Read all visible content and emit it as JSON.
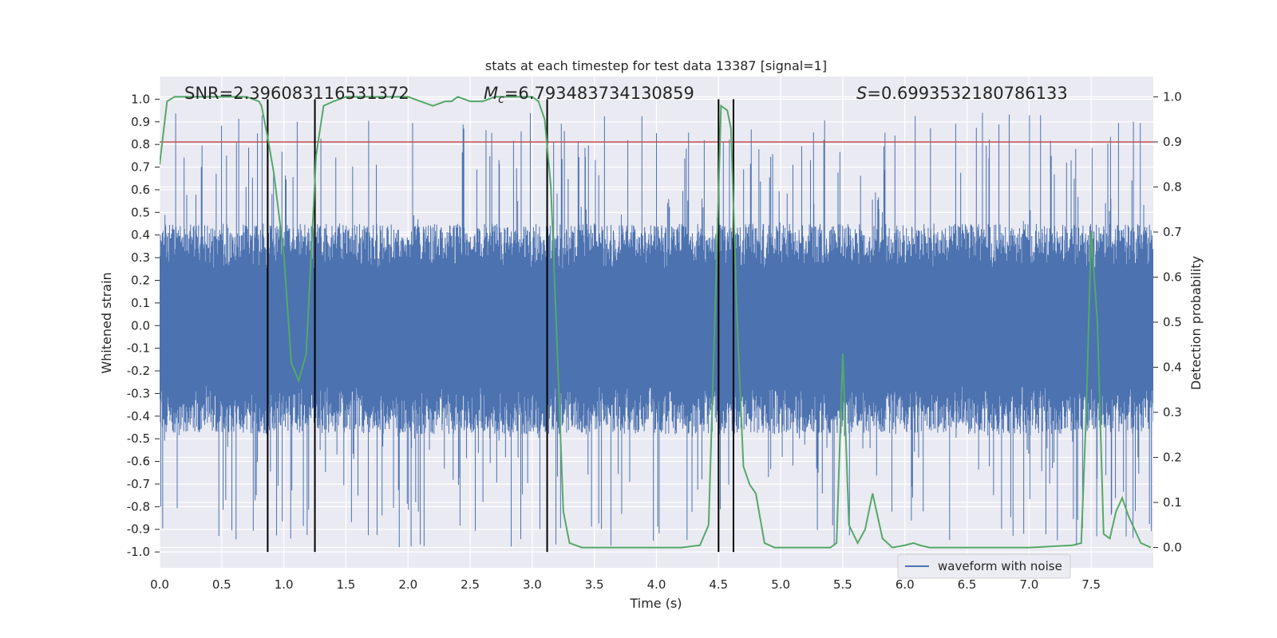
{
  "chart_data": {
    "type": "line",
    "title": "stats at each timestep for test data 13387 [signal=1]",
    "xlabel": "Time (s)",
    "ylabel_left": "Whitened strain",
    "ylabel_right": "Detection probability",
    "xlim": [
      0.0,
      8.0
    ],
    "ylim_left": [
      -1.07,
      1.1
    ],
    "ylim_right": [
      -0.045,
      1.045
    ],
    "x_ticks": [
      0.0,
      0.5,
      1.0,
      1.5,
      2.0,
      2.5,
      3.0,
      3.5,
      4.0,
      4.5,
      5.0,
      5.5,
      6.0,
      6.5,
      7.0,
      7.5
    ],
    "x_tick_labels": [
      "0.0",
      "0.5",
      "1.0",
      "1.5",
      "2.0",
      "2.5",
      "3.0",
      "3.5",
      "4.0",
      "4.5",
      "5.0",
      "5.5",
      "6.0",
      "6.5",
      "7.0",
      "7.5"
    ],
    "y_left_ticks": [
      1.0,
      0.9,
      0.8,
      0.7,
      0.6,
      0.5,
      0.4,
      0.3,
      0.2,
      0.1,
      0.0,
      -0.1,
      -0.2,
      -0.3,
      -0.4,
      -0.5,
      -0.6,
      -0.7,
      -0.8,
      -0.9,
      -1.0
    ],
    "y_left_tick_labels": [
      "1.0",
      "0.9",
      "0.8",
      "0.7",
      "0.6",
      "0.5",
      "0.4",
      "0.3",
      "0.2",
      "0.1",
      "0.0",
      "-0.1",
      "-0.2",
      "-0.3",
      "-0.4",
      "-0.5",
      "-0.6",
      "-0.7",
      "-0.8",
      "-0.9",
      "-1.0"
    ],
    "y_right_ticks": [
      1.0,
      0.9,
      0.8,
      0.7,
      0.6,
      0.5,
      0.4,
      0.3,
      0.2,
      0.1,
      0.0
    ],
    "y_right_tick_labels": [
      "1.0",
      "0.9",
      "0.8",
      "0.7",
      "0.6",
      "0.5",
      "0.4",
      "0.3",
      "0.2",
      "0.1",
      "0.0"
    ],
    "grid": true,
    "legend": {
      "entries": [
        "waveform with noise"
      ],
      "placement": "bottom-right"
    },
    "annotations": {
      "snr": "SNR=2.396083116531372",
      "mc_symbol": "M",
      "mc_subscript": "c",
      "mc_value": "=6.793483734130859",
      "s_symbol": "S",
      "s_value": "=0.6993532180786133"
    },
    "threshold": {
      "axis": "right",
      "value": 0.9,
      "color": "#c44e52"
    },
    "vertical_markers": [
      0.87,
      1.25,
      3.12,
      4.5,
      4.62
    ],
    "series": [
      {
        "name": "waveform with noise",
        "axis": "left",
        "color": "#4c72b0",
        "kind": "noisy-waveform",
        "band_upper": 0.45,
        "band_lower": -0.48,
        "peak_upper": 0.94,
        "peak_lower": -0.98
      },
      {
        "axis": "right",
        "color": "#55a868",
        "x": [
          0.0,
          0.06,
          0.12,
          0.2,
          0.4,
          0.6,
          0.7,
          0.8,
          0.82,
          0.87,
          0.92,
          1.0,
          1.06,
          1.12,
          1.18,
          1.22,
          1.26,
          1.32,
          1.4,
          1.5,
          1.6,
          1.8,
          2.0,
          2.1,
          2.2,
          2.3,
          2.35,
          2.4,
          2.5,
          2.6,
          2.7,
          2.8,
          3.0,
          3.05,
          3.1,
          3.15,
          3.2,
          3.25,
          3.3,
          3.4,
          3.6,
          3.8,
          4.0,
          4.2,
          4.35,
          4.42,
          4.48,
          4.52,
          4.57,
          4.6,
          4.65,
          4.7,
          4.75,
          4.8,
          4.87,
          4.95,
          5.0,
          5.2,
          5.4,
          5.45,
          5.5,
          5.55,
          5.62,
          5.68,
          5.74,
          5.82,
          5.9,
          6.0,
          6.07,
          6.12,
          6.2,
          6.5,
          7.0,
          7.35,
          7.42,
          7.46,
          7.5,
          7.55,
          7.6,
          7.65,
          7.7,
          7.75,
          7.8,
          7.9,
          7.98
        ],
        "y": [
          0.85,
          0.99,
          1.0,
          1.0,
          1.0,
          1.0,
          1.0,
          0.99,
          0.98,
          0.91,
          0.83,
          0.65,
          0.41,
          0.37,
          0.43,
          0.65,
          0.87,
          0.98,
          0.99,
          1.0,
          1.0,
          1.0,
          1.0,
          0.99,
          0.98,
          0.99,
          0.99,
          1.0,
          0.99,
          0.99,
          1.0,
          1.0,
          1.0,
          0.99,
          0.95,
          0.8,
          0.45,
          0.08,
          0.01,
          0.0,
          0.0,
          0.0,
          0.0,
          0.0,
          0.005,
          0.05,
          0.6,
          0.98,
          0.97,
          0.93,
          0.5,
          0.18,
          0.14,
          0.12,
          0.01,
          0.0,
          0.0,
          0.0,
          0.0,
          0.01,
          0.43,
          0.05,
          0.01,
          0.04,
          0.12,
          0.02,
          0.0,
          0.005,
          0.01,
          0.005,
          0.0,
          0.0,
          0.0,
          0.005,
          0.01,
          0.3,
          0.7,
          0.5,
          0.03,
          0.02,
          0.08,
          0.11,
          0.07,
          0.01,
          0.0
        ]
      }
    ]
  }
}
